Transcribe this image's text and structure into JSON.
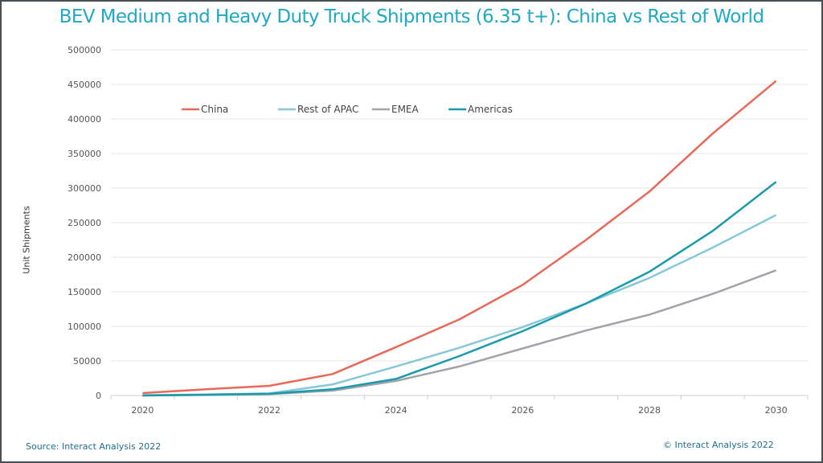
{
  "chart_data": {
    "type": "line",
    "title": "BEV Medium and Heavy Duty Truck Shipments (6.35 t+): China vs Rest of World",
    "xlabel": "",
    "ylabel": "Unit Shipments",
    "x": [
      2020,
      2021,
      2022,
      2023,
      2024,
      2025,
      2026,
      2027,
      2028,
      2029,
      2030
    ],
    "x_tick_labels": [
      "2020",
      "2022",
      "2024",
      "2026",
      "2028",
      "2030"
    ],
    "ylim": [
      0,
      500000
    ],
    "y_ticks": [
      0,
      50000,
      100000,
      150000,
      200000,
      250000,
      300000,
      350000,
      400000,
      450000,
      500000
    ],
    "grid": "horizontal",
    "legend_placement": "top-left",
    "series": [
      {
        "name": "China",
        "color": "#e8695a",
        "values": [
          3500,
          9000,
          14000,
          31000,
          70000,
          110000,
          160000,
          225000,
          295000,
          379000,
          455000
        ]
      },
      {
        "name": "Rest of APAC",
        "color": "#86c8d8",
        "values": [
          500,
          1500,
          3000,
          16000,
          42000,
          69000,
          99000,
          133000,
          170000,
          214000,
          261000
        ]
      },
      {
        "name": "EMEA",
        "color": "#a0a4a8",
        "values": [
          0,
          700,
          2000,
          7000,
          21000,
          42000,
          68000,
          94000,
          117000,
          147000,
          181000
        ]
      },
      {
        "name": "Americas",
        "color": "#1a9bab",
        "values": [
          0,
          1000,
          2500,
          9000,
          24000,
          57000,
          93000,
          133000,
          179000,
          238000,
          309000
        ]
      }
    ]
  },
  "footer": {
    "source": "Source: Interact Analysis 2022",
    "copyright": "© Interact Analysis 2022"
  }
}
